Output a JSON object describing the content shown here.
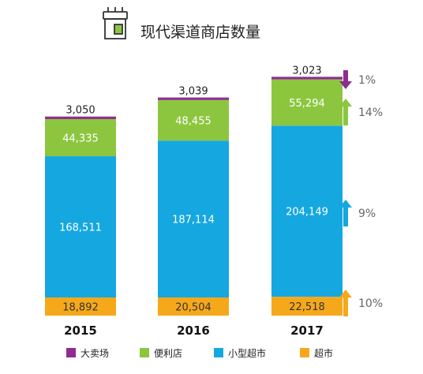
{
  "header": {
    "title": "现代渠道商店数量",
    "icon": "store-icon"
  },
  "chart_data": {
    "type": "bar",
    "stacked": true,
    "title": "现代渠道商店数量",
    "categories": [
      "2015",
      "2016",
      "2017"
    ],
    "series": [
      {
        "name": "超市",
        "color": "#f6a81b",
        "values": [
          18892,
          20504,
          22518
        ],
        "labels": [
          "18,892",
          "20,504",
          "22,518"
        ]
      },
      {
        "name": "小型超市",
        "color": "#15a7e0",
        "values": [
          168511,
          187114,
          204149
        ],
        "labels": [
          "168,511",
          "187,114",
          "204,149"
        ]
      },
      {
        "name": "便利店",
        "color": "#8cc63f",
        "values": [
          44335,
          48455,
          55294
        ],
        "labels": [
          "44,335",
          "48,455",
          "55,294"
        ]
      },
      {
        "name": "大卖场",
        "color": "#8e2d8f",
        "values": [
          3050,
          3039,
          3023
        ],
        "labels": [
          "3,050",
          "3,039",
          "3,023"
        ]
      }
    ],
    "growth_2017": [
      {
        "series": "大卖场",
        "direction": "down",
        "label": "1%",
        "color": "#8e2d8f"
      },
      {
        "series": "便利店",
        "direction": "up",
        "label": "14%",
        "color": "#8cc63f"
      },
      {
        "series": "小型超市",
        "direction": "up",
        "label": "9%",
        "color": "#15a7e0"
      },
      {
        "series": "超市",
        "direction": "up",
        "label": "10%",
        "color": "#f6a81b"
      }
    ],
    "legend": {
      "placement": "bottom",
      "order": [
        "大卖场",
        "便利店",
        "小型超市",
        "超市"
      ]
    }
  }
}
